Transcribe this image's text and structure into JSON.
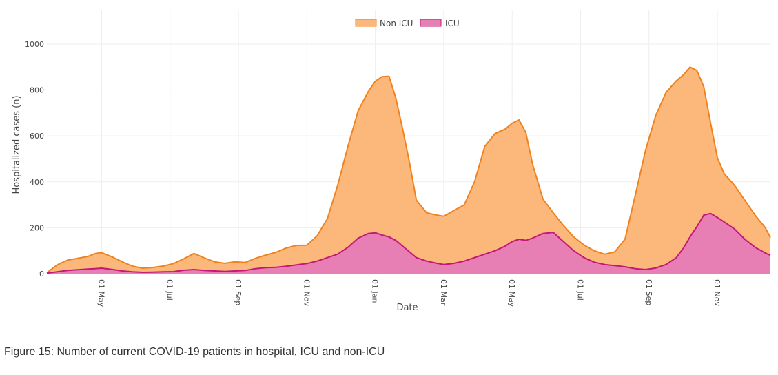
{
  "caption": "Figure 15: Number of current COVID-19 patients in hospital, ICU and non-ICU",
  "chart_data": {
    "type": "area",
    "stacked": true,
    "xlabel": "Date",
    "ylabel": "Hospitalized cases (n)",
    "ylim": [
      0,
      1150
    ],
    "xlim_month_index": [
      -1.6,
      19.55
    ],
    "y_ticks": [
      0,
      200,
      400,
      600,
      800,
      1000
    ],
    "grid": true,
    "legend_position": "top-center",
    "x_ticks": [
      {
        "label": "01 May",
        "m": 0
      },
      {
        "label": "01 Jul",
        "m": 2
      },
      {
        "label": "01 Sep",
        "m": 4
      },
      {
        "label": "01 Nov",
        "m": 6
      },
      {
        "label": "01 Jan",
        "m": 8
      },
      {
        "label": "01 Mar",
        "m": 10
      },
      {
        "label": "01 May",
        "m": 12
      },
      {
        "label": "01 Jul",
        "m": 14
      },
      {
        "label": "01 Sep",
        "m": 16
      },
      {
        "label": "01 Nov",
        "m": 18
      }
    ],
    "x_month_index": [
      -1.6,
      -1.3,
      -1.0,
      -0.7,
      -0.4,
      -0.2,
      0,
      0.3,
      0.6,
      0.9,
      1.2,
      1.5,
      1.8,
      2.1,
      2.4,
      2.7,
      3.0,
      3.3,
      3.6,
      3.9,
      4.2,
      4.5,
      4.8,
      5.1,
      5.4,
      5.7,
      6.0,
      6.3,
      6.6,
      6.9,
      7.2,
      7.5,
      7.8,
      8.0,
      8.2,
      8.4,
      8.6,
      8.8,
      9.0,
      9.2,
      9.5,
      9.8,
      10.0,
      10.3,
      10.6,
      10.9,
      11.2,
      11.5,
      11.8,
      12.0,
      12.2,
      12.4,
      12.6,
      12.9,
      13.2,
      13.5,
      13.8,
      14.1,
      14.4,
      14.7,
      15.0,
      15.3,
      15.6,
      15.9,
      16.2,
      16.5,
      16.8,
      17.0,
      17.2,
      17.4,
      17.6,
      17.8,
      18.0,
      18.2,
      18.5,
      18.8,
      19.1,
      19.4,
      19.55
    ],
    "series": [
      {
        "name": "ICU",
        "color": "#c2187a",
        "fill": "#e87fb4",
        "values": [
          2,
          8,
          14,
          17,
          20,
          22,
          24,
          19,
          12,
          8,
          6,
          7,
          8,
          9,
          15,
          18,
          14,
          12,
          10,
          12,
          14,
          22,
          26,
          28,
          32,
          38,
          44,
          55,
          70,
          85,
          115,
          155,
          175,
          178,
          168,
          160,
          145,
          120,
          95,
          70,
          55,
          45,
          40,
          45,
          55,
          70,
          85,
          100,
          120,
          140,
          150,
          145,
          155,
          175,
          180,
          140,
          100,
          70,
          50,
          40,
          35,
          30,
          22,
          18,
          25,
          40,
          70,
          110,
          160,
          205,
          255,
          262,
          245,
          225,
          195,
          150,
          115,
          90,
          80
        ]
      },
      {
        "name": "Non ICU",
        "color": "#f0821e",
        "fill": "#fbb87a",
        "values": [
          2,
          30,
          45,
          50,
          55,
          65,
          68,
          55,
          40,
          25,
          18,
          20,
          25,
          35,
          50,
          70,
          55,
          40,
          35,
          40,
          35,
          45,
          55,
          65,
          80,
          85,
          80,
          110,
          170,
          300,
          440,
          555,
          620,
          660,
          690,
          700,
          620,
          510,
          390,
          250,
          210,
          210,
          210,
          230,
          245,
          330,
          470,
          510,
          510,
          515,
          520,
          470,
          320,
          150,
          85,
          70,
          60,
          55,
          50,
          45,
          60,
          120,
          320,
          520,
          665,
          750,
          770,
          755,
          740,
          680,
          560,
          395,
          260,
          210,
          190,
          170,
          140,
          110,
          77
        ]
      }
    ]
  }
}
